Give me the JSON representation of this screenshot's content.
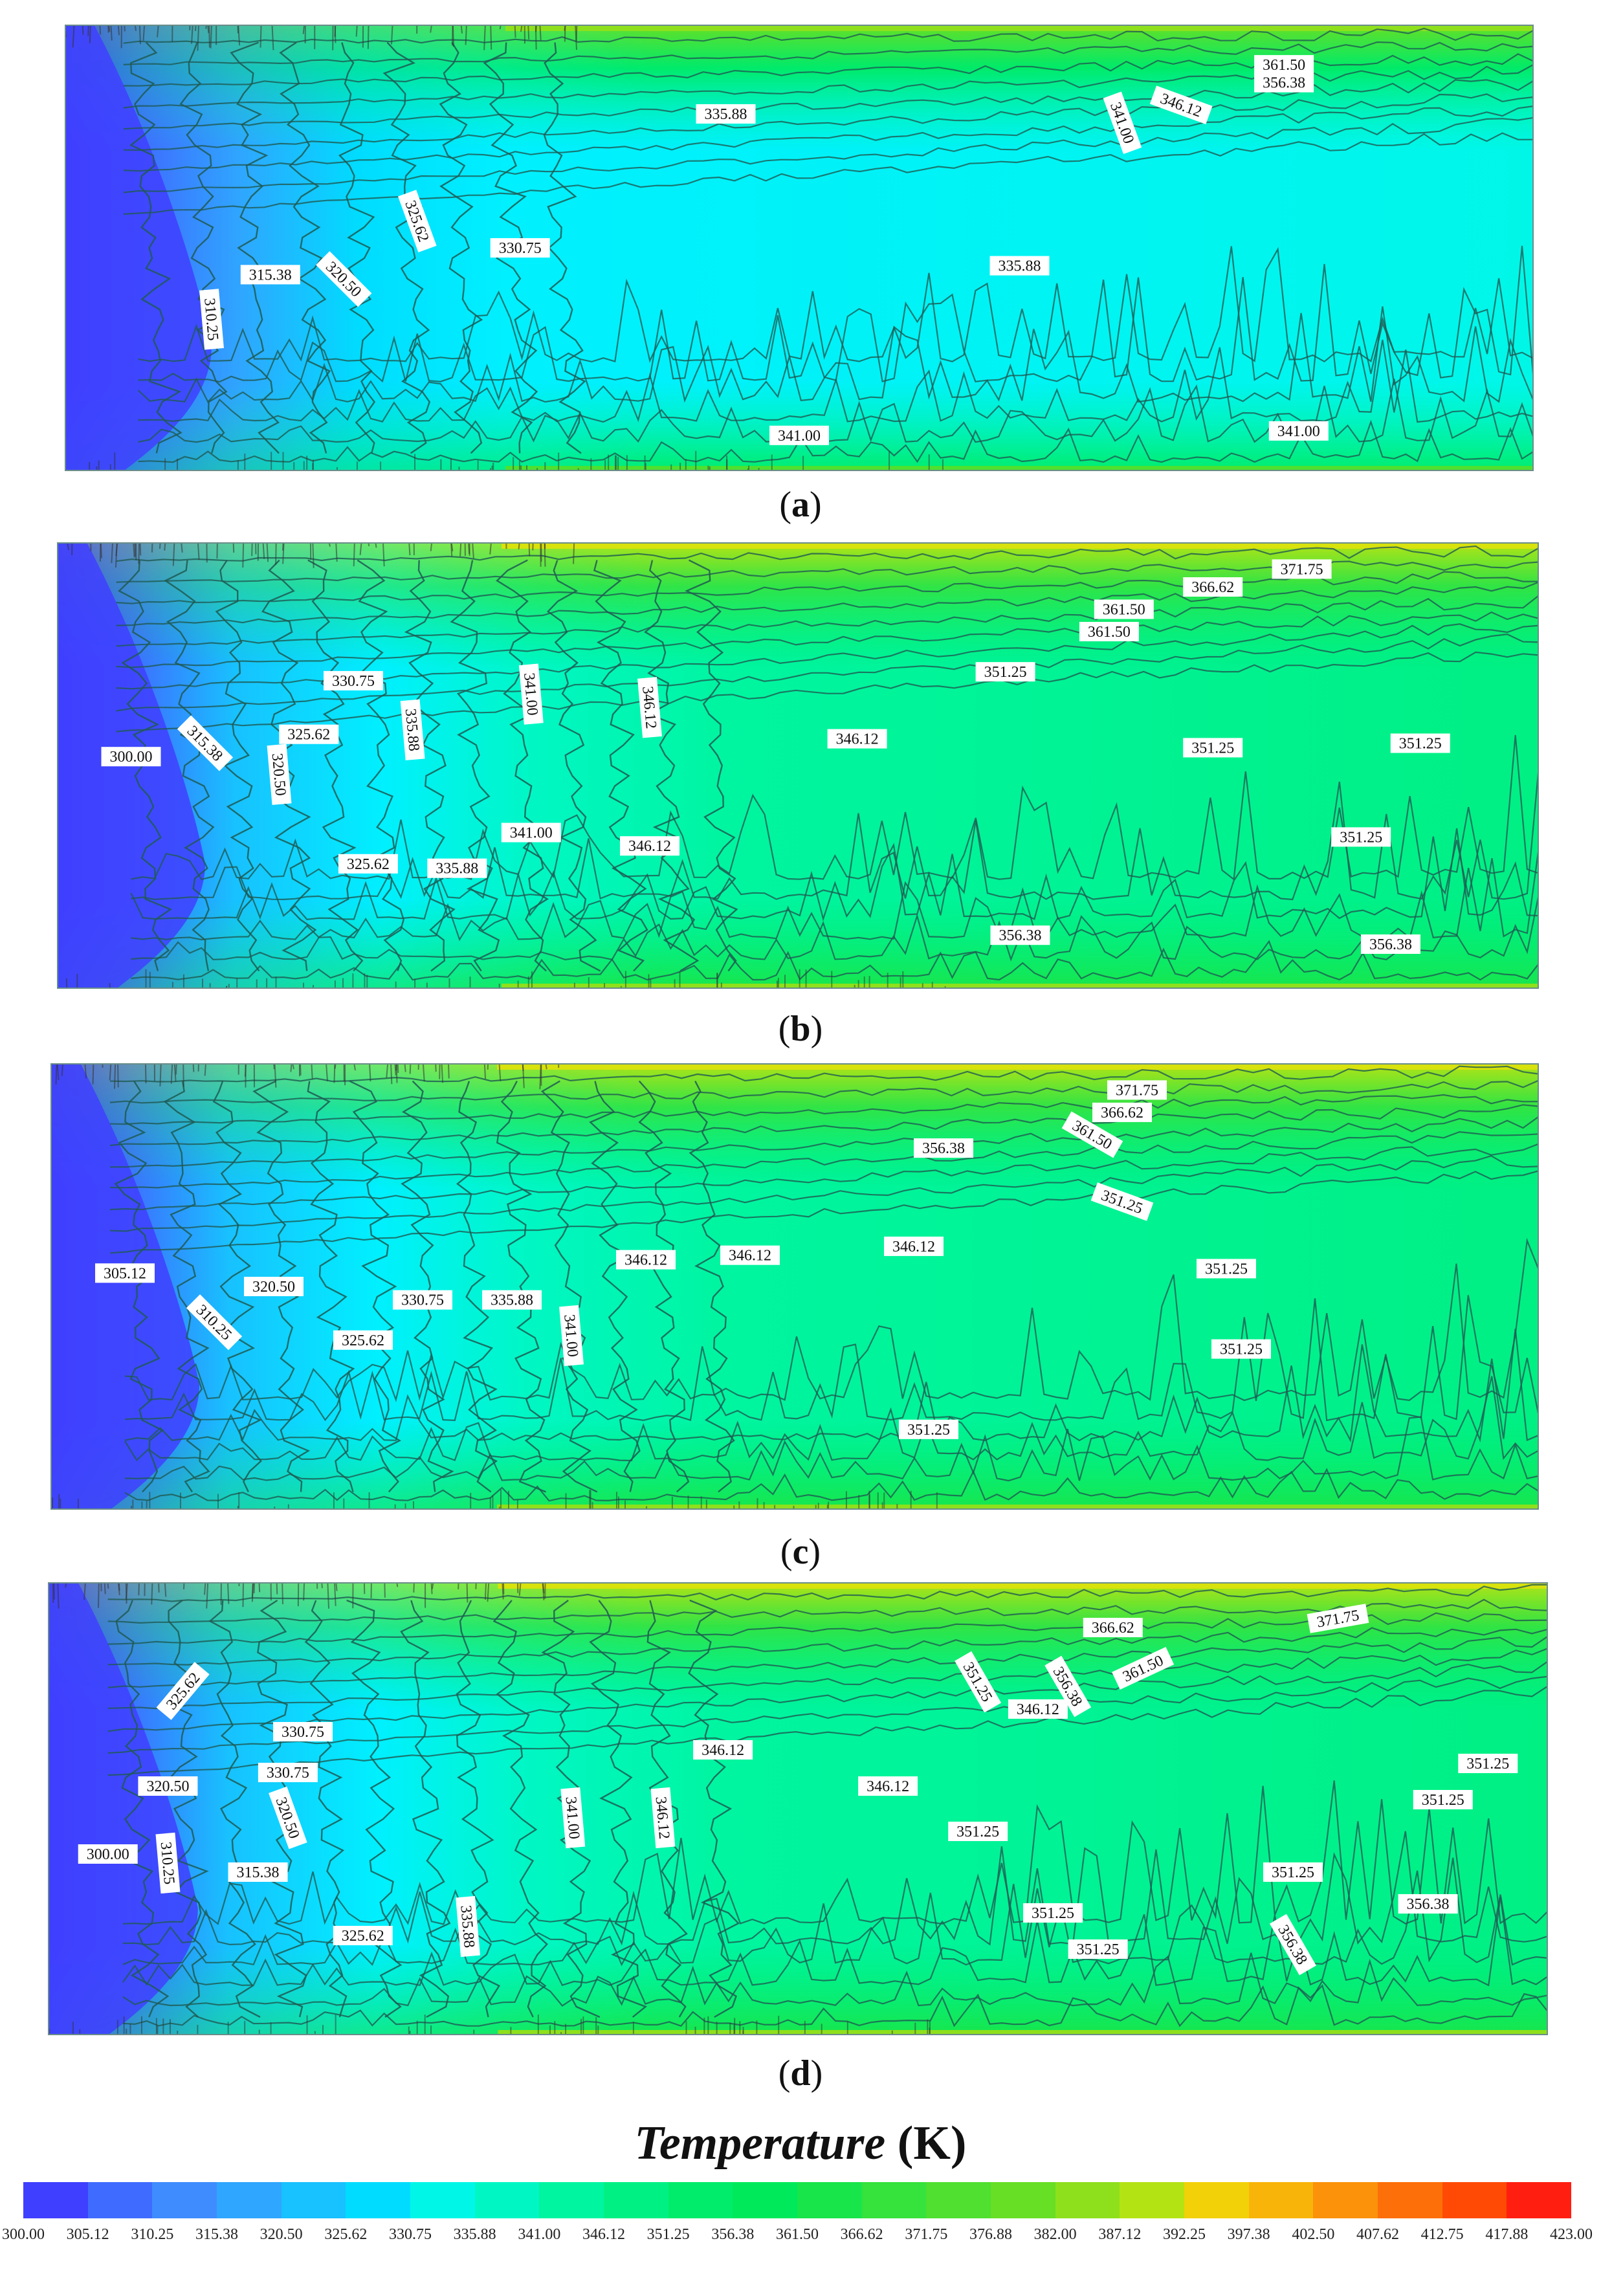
{
  "colors": {
    "palette": [
      "#3f3fff",
      "#3f6cff",
      "#3f8cff",
      "#2fa6ff",
      "#18c1ff",
      "#00dcff",
      "#00f0ff",
      "#00f7e8",
      "#00f7c4",
      "#00f5a0",
      "#00f084",
      "#00ec6a",
      "#00e95a",
      "#18e54a",
      "#36e23c",
      "#4fe030",
      "#67df24",
      "#8ee01c",
      "#b4e314",
      "#d8e20c",
      "#f2d108",
      "#f9b40a",
      "#fb920a",
      "#fd6f08",
      "#ff4a05",
      "#ff1e10"
    ],
    "contour": "#1f5a52"
  },
  "chart_data": [
    {
      "type": "heatmap",
      "label": "a",
      "peak": 361.5,
      "peak_position": "left",
      "contour_labels": [
        {
          "text": "361.50",
          "x": 0.83,
          "y": 0.09,
          "rot": 0
        },
        {
          "text": "356.38",
          "x": 0.83,
          "y": 0.13,
          "rot": 0
        },
        {
          "text": "335.88",
          "x": 0.45,
          "y": 0.2,
          "rot": 0
        },
        {
          "text": "346.12",
          "x": 0.76,
          "y": 0.18,
          "rot": 20
        },
        {
          "text": "341.00",
          "x": 0.72,
          "y": 0.22,
          "rot": 70
        },
        {
          "text": "325.62",
          "x": 0.24,
          "y": 0.44,
          "rot": 70
        },
        {
          "text": "330.75",
          "x": 0.31,
          "y": 0.5,
          "rot": 0
        },
        {
          "text": "315.38",
          "x": 0.14,
          "y": 0.56,
          "rot": 0
        },
        {
          "text": "320.50",
          "x": 0.19,
          "y": 0.57,
          "rot": 45
        },
        {
          "text": "310.25",
          "x": 0.1,
          "y": 0.66,
          "rot": 85
        },
        {
          "text": "335.88",
          "x": 0.65,
          "y": 0.54,
          "rot": 0
        },
        {
          "text": "341.00",
          "x": 0.5,
          "y": 0.92,
          "rot": 0
        },
        {
          "text": "341.00",
          "x": 0.84,
          "y": 0.91,
          "rot": 0
        }
      ]
    },
    {
      "type": "heatmap",
      "label": "b",
      "peak": 371.75,
      "contour_labels": [
        {
          "text": "371.75",
          "x": 0.84,
          "y": 0.06,
          "rot": 0
        },
        {
          "text": "366.62",
          "x": 0.78,
          "y": 0.1,
          "rot": 0
        },
        {
          "text": "361.50",
          "x": 0.72,
          "y": 0.15,
          "rot": 0
        },
        {
          "text": "361.50",
          "x": 0.71,
          "y": 0.2,
          "rot": 0
        },
        {
          "text": "351.25",
          "x": 0.64,
          "y": 0.29,
          "rot": 0
        },
        {
          "text": "330.75",
          "x": 0.2,
          "y": 0.31,
          "rot": 0
        },
        {
          "text": "341.00",
          "x": 0.32,
          "y": 0.34,
          "rot": 85
        },
        {
          "text": "346.12",
          "x": 0.4,
          "y": 0.37,
          "rot": 85
        },
        {
          "text": "335.88",
          "x": 0.24,
          "y": 0.42,
          "rot": 85
        },
        {
          "text": "300.00",
          "x": 0.05,
          "y": 0.48,
          "rot": 0
        },
        {
          "text": "315.38",
          "x": 0.1,
          "y": 0.45,
          "rot": 45
        },
        {
          "text": "325.62",
          "x": 0.17,
          "y": 0.43,
          "rot": 0
        },
        {
          "text": "320.50",
          "x": 0.15,
          "y": 0.52,
          "rot": 85
        },
        {
          "text": "346.12",
          "x": 0.54,
          "y": 0.44,
          "rot": 0
        },
        {
          "text": "351.25",
          "x": 0.78,
          "y": 0.46,
          "rot": 0
        },
        {
          "text": "351.25",
          "x": 0.92,
          "y": 0.45,
          "rot": 0
        },
        {
          "text": "341.00",
          "x": 0.32,
          "y": 0.65,
          "rot": 0
        },
        {
          "text": "346.12",
          "x": 0.4,
          "y": 0.68,
          "rot": 0
        },
        {
          "text": "325.62",
          "x": 0.21,
          "y": 0.72,
          "rot": 0
        },
        {
          "text": "335.88",
          "x": 0.27,
          "y": 0.73,
          "rot": 0
        },
        {
          "text": "351.25",
          "x": 0.88,
          "y": 0.66,
          "rot": 0
        },
        {
          "text": "356.38",
          "x": 0.65,
          "y": 0.88,
          "rot": 0
        },
        {
          "text": "356.38",
          "x": 0.9,
          "y": 0.9,
          "rot": 0
        }
      ]
    },
    {
      "type": "heatmap",
      "label": "c",
      "peak": 371.75,
      "contour_labels": [
        {
          "text": "371.75",
          "x": 0.73,
          "y": 0.06,
          "rot": 0
        },
        {
          "text": "366.62",
          "x": 0.72,
          "y": 0.11,
          "rot": 0
        },
        {
          "text": "361.50",
          "x": 0.7,
          "y": 0.16,
          "rot": 30
        },
        {
          "text": "356.38",
          "x": 0.6,
          "y": 0.19,
          "rot": 0
        },
        {
          "text": "351.25",
          "x": 0.72,
          "y": 0.31,
          "rot": 20
        },
        {
          "text": "346.12",
          "x": 0.58,
          "y": 0.41,
          "rot": 0
        },
        {
          "text": "346.12",
          "x": 0.4,
          "y": 0.44,
          "rot": 0
        },
        {
          "text": "346.12",
          "x": 0.47,
          "y": 0.43,
          "rot": 0
        },
        {
          "text": "351.25",
          "x": 0.79,
          "y": 0.46,
          "rot": 0
        },
        {
          "text": "305.12",
          "x": 0.05,
          "y": 0.47,
          "rot": 0
        },
        {
          "text": "320.50",
          "x": 0.15,
          "y": 0.5,
          "rot": 0
        },
        {
          "text": "310.25",
          "x": 0.11,
          "y": 0.58,
          "rot": 45
        },
        {
          "text": "330.75",
          "x": 0.25,
          "y": 0.53,
          "rot": 0
        },
        {
          "text": "335.88",
          "x": 0.31,
          "y": 0.53,
          "rot": 0
        },
        {
          "text": "341.00",
          "x": 0.35,
          "y": 0.61,
          "rot": 85
        },
        {
          "text": "325.62",
          "x": 0.21,
          "y": 0.62,
          "rot": 0
        },
        {
          "text": "351.25",
          "x": 0.8,
          "y": 0.64,
          "rot": 0
        },
        {
          "text": "351.25",
          "x": 0.59,
          "y": 0.82,
          "rot": 0
        }
      ]
    },
    {
      "type": "heatmap",
      "label": "d",
      "peak": 371.75,
      "contour_labels": [
        {
          "text": "371.75",
          "x": 0.86,
          "y": 0.08,
          "rot": -10
        },
        {
          "text": "366.62",
          "x": 0.71,
          "y": 0.1,
          "rot": 0
        },
        {
          "text": "361.50",
          "x": 0.73,
          "y": 0.19,
          "rot": -25
        },
        {
          "text": "356.38",
          "x": 0.68,
          "y": 0.23,
          "rot": 60
        },
        {
          "text": "351.25",
          "x": 0.62,
          "y": 0.22,
          "rot": 60
        },
        {
          "text": "346.12",
          "x": 0.66,
          "y": 0.28,
          "rot": 0
        },
        {
          "text": "325.62",
          "x": 0.09,
          "y": 0.24,
          "rot": -50
        },
        {
          "text": "330.75",
          "x": 0.17,
          "y": 0.33,
          "rot": 0
        },
        {
          "text": "330.75",
          "x": 0.16,
          "y": 0.42,
          "rot": 0
        },
        {
          "text": "346.12",
          "x": 0.45,
          "y": 0.37,
          "rot": 0
        },
        {
          "text": "346.12",
          "x": 0.56,
          "y": 0.45,
          "rot": 0
        },
        {
          "text": "351.25",
          "x": 0.96,
          "y": 0.4,
          "rot": 0
        },
        {
          "text": "351.25",
          "x": 0.93,
          "y": 0.48,
          "rot": 0
        },
        {
          "text": "320.50",
          "x": 0.08,
          "y": 0.45,
          "rot": 0
        },
        {
          "text": "320.50",
          "x": 0.16,
          "y": 0.52,
          "rot": 70
        },
        {
          "text": "341.00",
          "x": 0.35,
          "y": 0.52,
          "rot": 85
        },
        {
          "text": "346.12",
          "x": 0.41,
          "y": 0.52,
          "rot": 85
        },
        {
          "text": "351.25",
          "x": 0.62,
          "y": 0.55,
          "rot": 0
        },
        {
          "text": "300.00",
          "x": 0.04,
          "y": 0.6,
          "rot": 0
        },
        {
          "text": "310.25",
          "x": 0.08,
          "y": 0.62,
          "rot": 85
        },
        {
          "text": "315.38",
          "x": 0.14,
          "y": 0.64,
          "rot": 0
        },
        {
          "text": "351.25",
          "x": 0.83,
          "y": 0.64,
          "rot": 0
        },
        {
          "text": "356.38",
          "x": 0.92,
          "y": 0.71,
          "rot": 0
        },
        {
          "text": "351.25",
          "x": 0.67,
          "y": 0.73,
          "rot": 0
        },
        {
          "text": "325.62",
          "x": 0.21,
          "y": 0.78,
          "rot": 0
        },
        {
          "text": "335.88",
          "x": 0.28,
          "y": 0.76,
          "rot": 85
        },
        {
          "text": "351.25",
          "x": 0.7,
          "y": 0.81,
          "rot": 0
        },
        {
          "text": "356.38",
          "x": 0.83,
          "y": 0.8,
          "rot": 60
        }
      ]
    }
  ],
  "colorbar": {
    "title_main": "Temperature",
    "title_unit": "(K)",
    "ticks": [
      "300.00",
      "305.12",
      "310.25",
      "315.38",
      "320.50",
      "325.62",
      "330.75",
      "335.88",
      "341.00",
      "346.12",
      "351.25",
      "356.38",
      "361.50",
      "366.62",
      "371.75",
      "376.88",
      "382.00",
      "387.12",
      "392.25",
      "397.38",
      "402.50",
      "407.62",
      "412.75",
      "417.88",
      "423.00"
    ]
  }
}
